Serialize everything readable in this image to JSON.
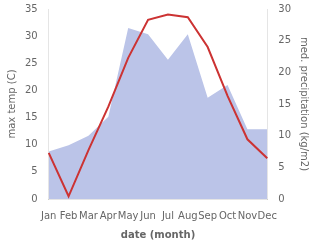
{
  "chart_data": {
    "type": "line",
    "categories": [
      "Jan",
      "Feb",
      "Mar",
      "Apr",
      "May",
      "Jun",
      "Jul",
      "Aug",
      "Sep",
      "Oct",
      "Nov",
      "Dec"
    ],
    "xlabel": "date (month)",
    "ylabel": "max temp (C)",
    "y2label": "med. precipitation (kg/m2)",
    "series": [
      {
        "type": "line",
        "color": "#cc3333",
        "values": [
          8.5,
          0.5,
          9.0,
          17.0,
          26.0,
          33.0,
          34.0,
          33.5,
          28.0,
          19.0,
          11.0,
          7.5
        ]
      },
      {
        "type": "area",
        "color": "#bbc4e8",
        "axis": "y2",
        "values": [
          7.5,
          8.5,
          10.0,
          13.0,
          27.0,
          26.0,
          22.0,
          26.0,
          16.0,
          18.0,
          11.0,
          11.0
        ]
      }
    ],
    "ylim": [
      0,
      35
    ],
    "yticks": [
      0,
      5,
      10,
      15,
      20,
      25,
      30,
      35
    ],
    "y2lim": [
      0,
      30
    ],
    "y2ticks": [
      0,
      5,
      10,
      15,
      20,
      25,
      30
    ],
    "grid": false
  }
}
